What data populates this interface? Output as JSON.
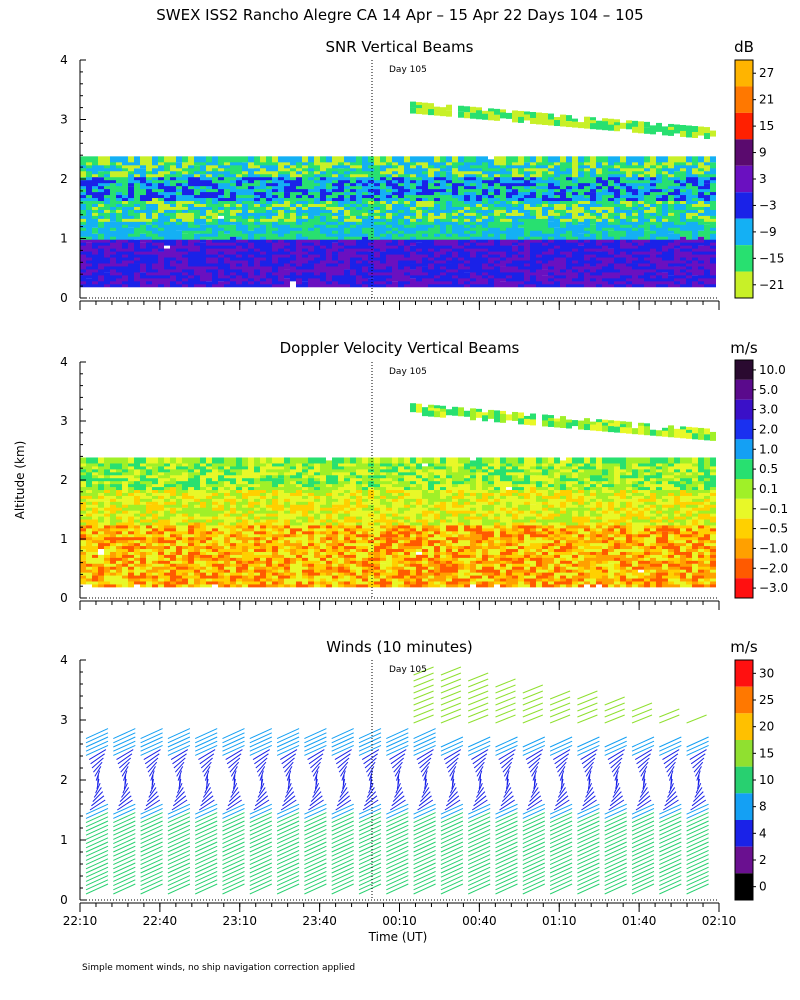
{
  "title": "SWEX ISS2 Rancho Alegre CA  14 Apr – 15 Apr 22 Days 104 – 105",
  "footnote": "Simple moment winds, no ship navigation correction applied",
  "ylabel": "Altitude (km)",
  "xlabel": "Time (UT)",
  "day_marker": "Day 105",
  "chart_data": [
    {
      "id": "snr",
      "type": "heatmap",
      "title": "SNR Vertical Beams",
      "units": "dB",
      "ylim": [
        0,
        4
      ],
      "yticks": [
        0,
        1,
        2,
        3,
        4
      ],
      "colorbar": {
        "labels": [
          "27",
          "21",
          "15",
          "9",
          "3",
          "−3",
          "−9",
          "−15",
          "−21"
        ],
        "colors": [
          "#ffb400",
          "#ff7800",
          "#ff2000",
          "#5a0a6e",
          "#6a10c0",
          "#1a22e8",
          "#14b0f4",
          "#28e070",
          "#c8f028"
        ]
      }
    },
    {
      "id": "doppler",
      "type": "heatmap",
      "title": "Doppler Velocity Vertical Beams",
      "units": "m/s",
      "ylim": [
        0,
        4
      ],
      "yticks": [
        0,
        1,
        2,
        3,
        4
      ],
      "colorbar": {
        "labels": [
          "10.0",
          "5.0",
          "3.0",
          "2.0",
          "1.0",
          "0.5",
          "0.1",
          "−0.1",
          "−0.5",
          "−1.0",
          "−2.0",
          "−3.0"
        ],
        "colors": [
          "#2a0a30",
          "#5a0a8c",
          "#3a10c8",
          "#1a30f0",
          "#14a0f4",
          "#28e070",
          "#a0f028",
          "#e8f828",
          "#ffd000",
          "#ffa000",
          "#ff5a00",
          "#ff1010"
        ]
      }
    },
    {
      "id": "winds",
      "type": "scatter",
      "title": "Winds (10 minutes)",
      "units": "m/s",
      "ylim": [
        0,
        4
      ],
      "yticks": [
        0,
        1,
        2,
        3,
        4
      ],
      "xlabel": "Time (UT)",
      "xticks": [
        "22:10",
        "22:40",
        "23:10",
        "23:40",
        "00:10",
        "00:40",
        "01:10",
        "01:40",
        "02:10"
      ],
      "colorbar": {
        "labels": [
          "30",
          "25",
          "20",
          "15",
          "10",
          "8",
          "4",
          "2",
          "0"
        ],
        "colors": [
          "#ff1010",
          "#ff7800",
          "#ffc000",
          "#90e030",
          "#28d070",
          "#14a0f4",
          "#1a22e8",
          "#6a1090",
          "#000000"
        ]
      }
    }
  ]
}
